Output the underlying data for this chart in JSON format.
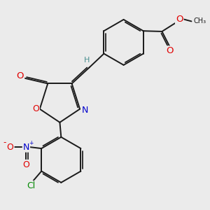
{
  "background_color": "#ebebeb",
  "bond_color": "#1a1a1a",
  "bond_width": 1.4,
  "dbo": 0.055,
  "atom_colors": {
    "O": "#e00000",
    "N": "#0000cc",
    "Cl": "#008800",
    "H": "#4a9090",
    "C": "#1a1a1a"
  },
  "fs": 8.5,
  "fs_small": 7.0
}
